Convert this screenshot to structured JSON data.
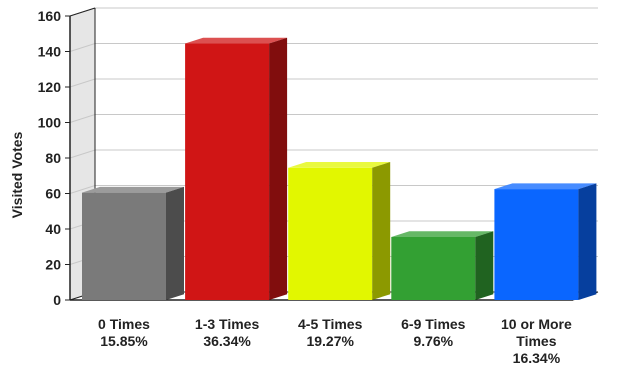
{
  "chart_data": {
    "type": "bar",
    "title": "",
    "xlabel": "",
    "ylabel": "Visited Votes",
    "ylim": [
      0,
      160
    ],
    "yticks": [
      0,
      20,
      40,
      60,
      80,
      100,
      120,
      140,
      160
    ],
    "grid": true,
    "legend": "none",
    "three_d": true,
    "categories": [
      [
        "0 Times",
        "15.85%"
      ],
      [
        "1-3 Times",
        "36.34%"
      ],
      [
        "4-5 Times",
        "19.27%"
      ],
      [
        "6-9 Times",
        "9.76%"
      ],
      [
        "10 or More",
        "Times",
        "16.34%"
      ]
    ],
    "values": [
      65,
      149,
      79,
      40,
      67
    ],
    "percentages": [
      "15.85%",
      "36.34%",
      "19.27%",
      "9.76%",
      "16.34%"
    ],
    "colors": [
      "#7a7a7a",
      "#d01515",
      "#e2f700",
      "#33a033",
      "#0a66ff"
    ]
  }
}
